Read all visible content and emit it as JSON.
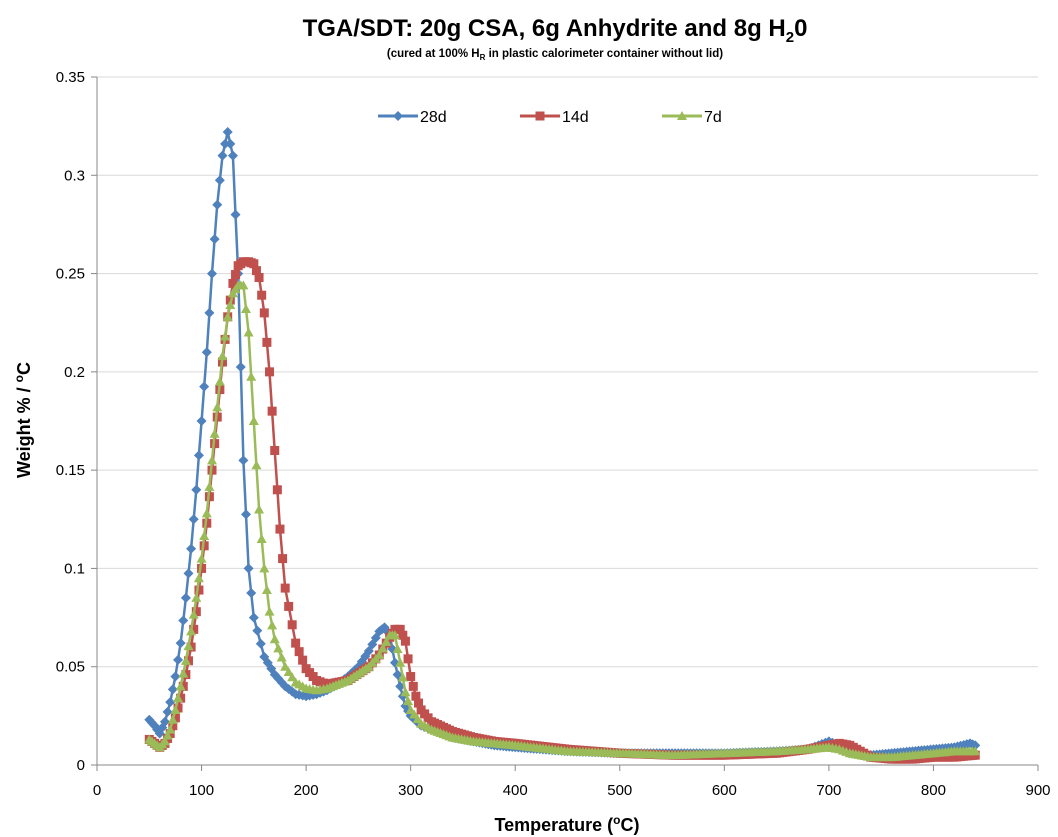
{
  "chart_data": {
    "type": "line",
    "title_parts": [
      "TGA/SDT:  20g CSA, 6g Anhydrite and 8g H",
      "2",
      "0"
    ],
    "subtitle_parts": [
      "(cured at 100% H",
      "R",
      " in plastic calorimeter container without lid)"
    ],
    "xlabel_parts": [
      "Temperature (",
      "o",
      "C)"
    ],
    "ylabel_parts": [
      "Weight % / ",
      "o",
      "C"
    ],
    "xlim": [
      0,
      900
    ],
    "ylim": [
      0,
      0.35
    ],
    "x_ticks": [
      0,
      100,
      200,
      300,
      400,
      500,
      600,
      700,
      800,
      900
    ],
    "y_ticks": [
      0,
      0.05,
      0.1,
      0.15,
      0.2,
      0.25,
      0.3,
      0.35
    ],
    "x_tick_labels": [
      "0",
      "100",
      "200",
      "300",
      "400",
      "500",
      "600",
      "700",
      "800",
      "900"
    ],
    "y_tick_labels": [
      "0",
      "0.05",
      "0.1",
      "0.15",
      "0.2",
      "0.25",
      "0.3",
      "0.35"
    ],
    "grid": "horizontal",
    "legend_position": "top",
    "series": [
      {
        "name": "28d",
        "color": "#4f81bd",
        "marker": "diamond",
        "x": [
          50,
          55,
          60,
          65,
          70,
          75,
          80,
          85,
          90,
          95,
          100,
          105,
          110,
          115,
          120,
          125,
          130,
          135,
          140,
          145,
          150,
          160,
          170,
          180,
          190,
          200,
          210,
          220,
          230,
          240,
          250,
          260,
          270,
          275,
          280,
          285,
          290,
          295,
          300,
          310,
          320,
          340,
          360,
          380,
          400,
          450,
          500,
          550,
          600,
          650,
          680,
          690,
          700,
          710,
          720,
          740,
          760,
          780,
          800,
          820,
          835,
          840
        ],
        "y": [
          0.023,
          0.02,
          0.016,
          0.022,
          0.032,
          0.045,
          0.062,
          0.085,
          0.11,
          0.14,
          0.175,
          0.21,
          0.25,
          0.285,
          0.31,
          0.322,
          0.31,
          0.25,
          0.155,
          0.1,
          0.075,
          0.055,
          0.046,
          0.04,
          0.036,
          0.035,
          0.036,
          0.038,
          0.041,
          0.045,
          0.05,
          0.058,
          0.068,
          0.07,
          0.066,
          0.052,
          0.04,
          0.03,
          0.025,
          0.02,
          0.018,
          0.014,
          0.012,
          0.01,
          0.009,
          0.007,
          0.006,
          0.006,
          0.006,
          0.007,
          0.008,
          0.01,
          0.012,
          0.01,
          0.006,
          0.005,
          0.006,
          0.007,
          0.008,
          0.009,
          0.011,
          0.01
        ]
      },
      {
        "name": "14d",
        "color": "#c0504d",
        "marker": "square",
        "x": [
          50,
          55,
          60,
          65,
          70,
          75,
          80,
          85,
          90,
          95,
          100,
          105,
          110,
          115,
          120,
          125,
          130,
          135,
          140,
          145,
          150,
          155,
          160,
          165,
          170,
          175,
          180,
          190,
          200,
          210,
          220,
          240,
          260,
          270,
          280,
          285,
          290,
          295,
          300,
          305,
          310,
          320,
          340,
          360,
          380,
          400,
          450,
          500,
          550,
          600,
          650,
          680,
          700,
          710,
          720,
          730,
          740,
          760,
          780,
          800,
          820,
          840
        ],
        "y": [
          0.013,
          0.011,
          0.009,
          0.011,
          0.016,
          0.024,
          0.034,
          0.046,
          0.06,
          0.078,
          0.1,
          0.123,
          0.15,
          0.177,
          0.205,
          0.228,
          0.245,
          0.254,
          0.256,
          0.256,
          0.255,
          0.248,
          0.23,
          0.2,
          0.16,
          0.12,
          0.09,
          0.062,
          0.049,
          0.043,
          0.041,
          0.043,
          0.05,
          0.056,
          0.065,
          0.069,
          0.069,
          0.063,
          0.045,
          0.035,
          0.028,
          0.022,
          0.017,
          0.014,
          0.012,
          0.011,
          0.008,
          0.006,
          0.005,
          0.005,
          0.006,
          0.008,
          0.01,
          0.011,
          0.01,
          0.007,
          0.004,
          0.003,
          0.003,
          0.004,
          0.004,
          0.005
        ]
      },
      {
        "name": "7d",
        "color": "#9bbb59",
        "marker": "triangle",
        "x": [
          50,
          55,
          60,
          65,
          70,
          75,
          80,
          85,
          90,
          95,
          100,
          105,
          110,
          115,
          120,
          125,
          130,
          135,
          140,
          145,
          150,
          155,
          160,
          165,
          170,
          180,
          190,
          200,
          210,
          220,
          240,
          260,
          270,
          280,
          285,
          290,
          295,
          300,
          310,
          320,
          340,
          360,
          380,
          400,
          450,
          500,
          550,
          600,
          650,
          680,
          700,
          710,
          720,
          740,
          760,
          780,
          800,
          820,
          840
        ],
        "y": [
          0.013,
          0.011,
          0.009,
          0.012,
          0.018,
          0.028,
          0.04,
          0.053,
          0.068,
          0.085,
          0.105,
          0.128,
          0.155,
          0.182,
          0.208,
          0.228,
          0.24,
          0.244,
          0.244,
          0.22,
          0.175,
          0.13,
          0.1,
          0.078,
          0.064,
          0.05,
          0.042,
          0.039,
          0.038,
          0.039,
          0.043,
          0.05,
          0.056,
          0.066,
          0.066,
          0.052,
          0.037,
          0.028,
          0.021,
          0.018,
          0.014,
          0.012,
          0.011,
          0.01,
          0.007,
          0.006,
          0.005,
          0.006,
          0.007,
          0.008,
          0.009,
          0.008,
          0.006,
          0.004,
          0.004,
          0.005,
          0.006,
          0.007,
          0.007
        ]
      }
    ]
  }
}
